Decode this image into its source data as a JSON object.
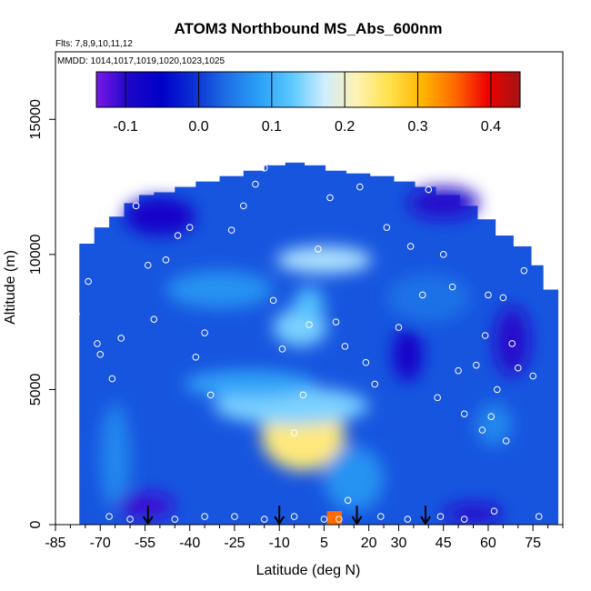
{
  "chart_data": {
    "type": "heatmap",
    "title": "ATOM3 Northbound MS_Abs_600nm",
    "subtitle_flights": "Flts: 7,8,9,10,11,12",
    "subtitle_dates": "MMDD: 1014,1017,1019,1020,1023,1025",
    "xlabel": "Latitude (deg N)",
    "ylabel": "Altitude (m)",
    "xlim": [
      -85,
      85
    ],
    "ylim": [
      0,
      17500
    ],
    "x_ticks": [
      -85,
      -70,
      -55,
      -40,
      -25,
      -10,
      5,
      20,
      30,
      45,
      60,
      75
    ],
    "x_tick_labels": [
      "-85",
      "-70",
      "-55",
      "-40",
      "-25",
      "-10",
      "5",
      "20",
      "30",
      "45",
      "60",
      "75"
    ],
    "x_minor_ticks": [
      -80,
      -75,
      -65,
      -60,
      -50,
      -45,
      -35,
      -30,
      -20,
      -15,
      -5,
      0,
      10,
      15,
      25,
      35,
      40,
      50,
      55,
      65,
      70,
      80,
      85
    ],
    "y_ticks": [
      0,
      5000,
      10000,
      15000
    ],
    "y_tick_labels": [
      "0",
      "5000",
      "10000",
      "15000"
    ],
    "colorbar": {
      "range": [
        -0.14,
        0.44
      ],
      "ticks": [
        -0.1,
        0.0,
        0.1,
        0.2,
        0.3,
        0.4
      ],
      "tick_labels": [
        "-0.1",
        "0.0",
        "0.1",
        "0.2",
        "0.3",
        "0.4"
      ],
      "colors": [
        "#7a18e6",
        "#1c07c9",
        "#0000c8",
        "#0b30d4",
        "#1f6fe6",
        "#2aa0f7",
        "#5bc8ff",
        "#cfeeff",
        "#fff2b0",
        "#ffe14a",
        "#ffb400",
        "#ff6a00",
        "#ee0000",
        "#a31515"
      ]
    },
    "arrows_latitudes": [
      -54,
      -10,
      16,
      39
    ],
    "color_legend_type": "colorbar",
    "field_features": [
      {
        "description": "enhanced values near equator mid troposphere",
        "lat": -5,
        "alt_m": 3200,
        "value": 0.25
      },
      {
        "description": "enhanced values upper troposphere",
        "lat": 5,
        "alt_m": 9800,
        "value": 0.15
      },
      {
        "description": "near-surface maximum",
        "lat": 8,
        "alt_m": 200,
        "value": 0.35
      }
    ]
  }
}
